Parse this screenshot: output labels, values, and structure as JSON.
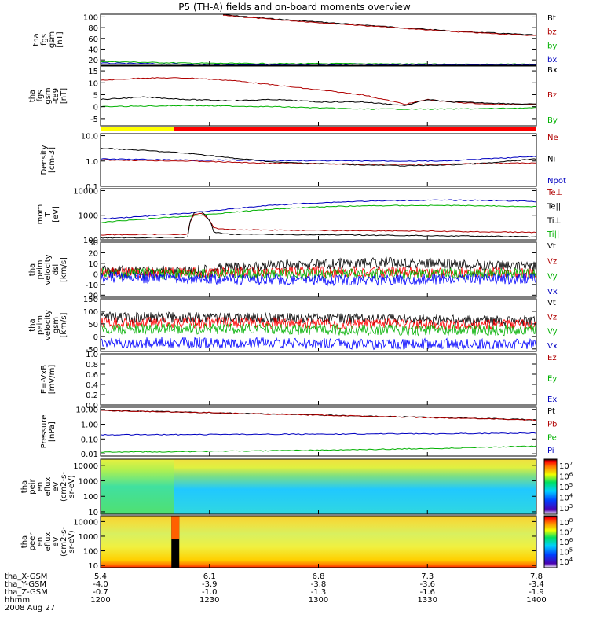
{
  "title": "P5 (TH-A) fields and on-board moments overview",
  "chart_data": [
    {
      "type": "line",
      "ylabel": [
        "tha",
        "fgs",
        "gsm",
        "[nT]"
      ],
      "ylim": [
        10,
        105
      ],
      "yticks": [
        20,
        40,
        60,
        80,
        100
      ],
      "ytick_labels": [
        "20",
        "40",
        "60",
        "80",
        "100"
      ],
      "legend": [
        {
          "label": "Bt",
          "color": "#000000"
        },
        {
          "label": "bz",
          "color": "#b00000"
        },
        {
          "label": "by",
          "color": "#00b000"
        },
        {
          "label": "bx",
          "color": "#0000c0"
        }
      ],
      "series": [
        {
          "name": "Bt",
          "color": "#000000",
          "x": [
            0.28,
            0.4,
            0.6,
            0.8,
            1.0
          ],
          "y": [
            104,
            96,
            85,
            74,
            66
          ]
        },
        {
          "name": "bz",
          "color": "#b00000",
          "x": [
            0.28,
            0.4,
            0.6,
            0.8,
            1.0
          ],
          "y": [
            103,
            95,
            84,
            73,
            65
          ]
        },
        {
          "name": "by",
          "color": "#00b000",
          "x": [
            0,
            0.2,
            0.4,
            0.6,
            0.8,
            1.0
          ],
          "y": [
            17,
            14,
            13,
            13,
            12,
            12
          ]
        },
        {
          "name": "bx",
          "color": "#0000c0",
          "x": [
            0,
            0.2,
            0.4,
            0.6,
            0.8,
            1.0
          ],
          "y": [
            14,
            12,
            11,
            12,
            11,
            11
          ]
        }
      ]
    },
    {
      "type": "line",
      "ylabel": [
        "tha",
        "fgs",
        "gsm",
        "-t89",
        "[nT]"
      ],
      "ylim": [
        -8,
        17
      ],
      "yticks": [
        -5,
        0,
        5,
        10,
        15
      ],
      "ytick_labels": [
        "-5",
        "0",
        "5",
        "10",
        "15"
      ],
      "legend": [
        {
          "label": "Bx",
          "color": "#000000"
        },
        {
          "label": "Bz",
          "color": "#b00000"
        },
        {
          "label": "By",
          "color": "#00b000"
        }
      ],
      "series": [
        {
          "name": "Bz",
          "color": "#b00000",
          "x": [
            0,
            0.1,
            0.2,
            0.3,
            0.4,
            0.5,
            0.55,
            0.6,
            0.65,
            0.7,
            0.75,
            0.8,
            0.9,
            1.0
          ],
          "y": [
            11,
            12,
            12,
            11,
            9,
            7,
            6,
            5,
            3,
            1,
            3,
            2,
            1,
            1
          ]
        },
        {
          "name": "Bx",
          "color": "#000000",
          "x": [
            0,
            0.1,
            0.2,
            0.3,
            0.4,
            0.5,
            0.6,
            0.7,
            0.75,
            0.8,
            0.9,
            1.0
          ],
          "y": [
            3,
            4,
            3,
            2.5,
            3,
            2,
            2,
            0.5,
            3,
            2,
            1.5,
            1
          ]
        },
        {
          "name": "By",
          "color": "#00b000",
          "x": [
            0,
            0.2,
            0.4,
            0.6,
            0.8,
            1.0
          ],
          "y": [
            0,
            0.5,
            0,
            -1,
            -1,
            -0.5
          ]
        }
      ]
    },
    {
      "type": "line",
      "ylabel": [
        "Density",
        "[cm-3]"
      ],
      "yscale": "log",
      "ylim": [
        0.1,
        12
      ],
      "yticks": [
        0.1,
        1.0,
        10.0
      ],
      "ytick_labels": [
        "0.1",
        "1.0",
        "10.0"
      ],
      "legend": [
        {
          "label": "Ne",
          "color": "#b00000"
        },
        {
          "label": "Ni",
          "color": "#000000"
        },
        {
          "label": "Npot",
          "color": "#0000c0"
        }
      ],
      "series": [
        {
          "name": "Ni",
          "color": "#000000",
          "x": [
            0,
            0.1,
            0.2,
            0.3,
            0.4,
            0.5,
            0.6,
            0.7,
            0.8,
            0.9,
            1.0
          ],
          "y": [
            3.2,
            2.6,
            2.0,
            1.3,
            0.9,
            0.8,
            0.7,
            0.65,
            0.7,
            0.85,
            1.2
          ]
        },
        {
          "name": "Ne",
          "color": "#b00000",
          "x": [
            0,
            0.2,
            0.3,
            0.4,
            0.6,
            0.8,
            1.0
          ],
          "y": [
            1.1,
            1.0,
            0.9,
            0.8,
            0.75,
            0.75,
            0.85
          ]
        },
        {
          "name": "Npot",
          "color": "#0000c0",
          "x": [
            0,
            0.2,
            0.4,
            0.6,
            0.8,
            1.0
          ],
          "y": [
            1.2,
            1.1,
            1.05,
            1.0,
            1.0,
            1.5
          ]
        }
      ]
    },
    {
      "type": "line",
      "ylabel": [
        "mom",
        "T",
        "[eV]"
      ],
      "yscale": "log",
      "ylim": [
        100,
        12000
      ],
      "yticks": [
        100,
        1000,
        10000
      ],
      "ytick_labels": [
        "100",
        "1000",
        "10000"
      ],
      "legend": [
        {
          "label": "Te⊥",
          "color": "#b00000"
        },
        {
          "label": "Te||",
          "color": "#000000"
        },
        {
          "label": "Ti⊥",
          "color": "#000000"
        },
        {
          "label": "Ti||",
          "color": "#00b000"
        }
      ],
      "series": [
        {
          "name": "Ti⊥",
          "color": "#0000c0",
          "x": [
            0,
            0.1,
            0.2,
            0.3,
            0.4,
            0.5,
            0.6,
            0.7,
            0.8,
            0.9,
            1.0
          ],
          "y": [
            700,
            900,
            1200,
            1800,
            2600,
            3200,
            3700,
            4000,
            4100,
            4000,
            3600
          ]
        },
        {
          "name": "Ti||",
          "color": "#00b000",
          "x": [
            0,
            0.1,
            0.2,
            0.3,
            0.4,
            0.5,
            0.6,
            0.7,
            0.8,
            0.9,
            1.0
          ],
          "y": [
            500,
            700,
            900,
            1300,
            1800,
            2200,
            2400,
            2500,
            2500,
            2400,
            2200
          ]
        },
        {
          "name": "Te⊥",
          "color": "#b00000",
          "x": [
            0,
            0.2,
            0.215,
            0.23,
            0.26,
            0.3,
            0.5,
            0.7,
            0.9,
            1.0
          ],
          "y": [
            160,
            170,
            1100,
            1200,
            300,
            260,
            240,
            230,
            210,
            200
          ]
        },
        {
          "name": "Te||",
          "color": "#000000",
          "x": [
            0,
            0.2,
            0.215,
            0.23,
            0.26,
            0.3,
            0.5,
            0.7,
            0.9,
            1.0
          ],
          "y": [
            120,
            125,
            1300,
            1400,
            200,
            170,
            160,
            150,
            140,
            130
          ]
        }
      ]
    },
    {
      "type": "line",
      "ylabel": [
        "tha",
        "peim",
        "velocity",
        "dsl",
        "[km/s]"
      ],
      "ylim": [
        -22,
        30
      ],
      "yticks": [
        -20,
        -10,
        0,
        10,
        20,
        30
      ],
      "ytick_labels": [
        "-20",
        "-10",
        "0",
        "10",
        "20",
        "30"
      ],
      "legend": [
        {
          "label": "Vt",
          "color": "#000000"
        },
        {
          "label": "Vz",
          "color": "#b00000"
        },
        {
          "label": "Vy",
          "color": "#00b000"
        },
        {
          "label": "Vx",
          "color": "#0000c0"
        }
      ],
      "series": [
        {
          "name": "Vt",
          "color": "#000000",
          "x": [
            0,
            0.2,
            0.3,
            0.4,
            0.5,
            0.6,
            0.7,
            0.8,
            0.9,
            1.0
          ],
          "y": [
            3,
            3,
            6,
            8,
            9,
            10,
            11,
            9,
            8,
            7
          ]
        },
        {
          "name": "Vz",
          "color": "#ff0000",
          "x": [
            0,
            0.5,
            1.0
          ],
          "y": [
            1,
            2,
            1
          ]
        },
        {
          "name": "Vy",
          "color": "#00b000",
          "x": [
            0,
            0.5,
            1.0
          ],
          "y": [
            0,
            0,
            0
          ]
        },
        {
          "name": "Vx",
          "color": "#0000ff",
          "x": [
            0,
            0.3,
            0.6,
            1.0
          ],
          "y": [
            -3,
            -5,
            -6,
            -4
          ]
        }
      ]
    },
    {
      "type": "line",
      "ylabel": [
        "tha",
        "peim",
        "velocity",
        "gsm",
        "[km/s]"
      ],
      "ylim": [
        -60,
        150
      ],
      "yticks": [
        -50,
        0,
        50,
        100,
        150
      ],
      "ytick_labels": [
        "-50",
        "0",
        "50",
        "100",
        "150"
      ],
      "legend": [
        {
          "label": "Vt",
          "color": "#000000"
        },
        {
          "label": "Vz",
          "color": "#b00000"
        },
        {
          "label": "Vy",
          "color": "#00b000"
        },
        {
          "label": "Vx",
          "color": "#0000c0"
        }
      ],
      "series": [
        {
          "name": "Vt",
          "color": "#000000",
          "x": [
            0,
            0.3,
            0.6,
            1.0
          ],
          "y": [
            75,
            75,
            70,
            60
          ]
        },
        {
          "name": "Vz",
          "color": "#ff0000",
          "x": [
            0,
            0.3,
            0.6,
            1.0
          ],
          "y": [
            55,
            55,
            50,
            45
          ]
        },
        {
          "name": "Vy",
          "color": "#00b000",
          "x": [
            0,
            0.3,
            0.6,
            1.0
          ],
          "y": [
            30,
            30,
            25,
            25
          ]
        },
        {
          "name": "Vx",
          "color": "#0000ff",
          "x": [
            0,
            0.3,
            0.6,
            1.0
          ],
          "y": [
            -25,
            -25,
            -30,
            -30
          ]
        }
      ]
    },
    {
      "type": "line",
      "ylabel": [
        "E=-VxB",
        "[mV/m]"
      ],
      "ylim": [
        0,
        1
      ],
      "yticks": [
        0,
        0.2,
        0.4,
        0.6,
        0.8,
        1.0
      ],
      "ytick_labels": [
        "0.0",
        "0.2",
        "0.4",
        "0.6",
        "0.8",
        "1.0"
      ],
      "legend": [
        {
          "label": "Ez",
          "color": "#b00000"
        },
        {
          "label": "Ey",
          "color": "#00b000"
        },
        {
          "label": "Ex",
          "color": "#0000c0"
        }
      ],
      "series": []
    },
    {
      "type": "line",
      "ylabel": [
        "Pressure",
        "[nPa]"
      ],
      "yscale": "log",
      "ylim": [
        0.007,
        14
      ],
      "yticks": [
        0.01,
        0.1,
        1.0,
        10.0
      ],
      "ytick_labels": [
        "0.01",
        "0.10",
        "1.00",
        "10.00"
      ],
      "legend": [
        {
          "label": "Pt",
          "color": "#000000"
        },
        {
          "label": "Pb",
          "color": "#b00000"
        },
        {
          "label": "Pe",
          "color": "#00b000"
        },
        {
          "label": "Pi",
          "color": "#0000c0"
        }
      ],
      "series": [
        {
          "name": "Pt",
          "color": "#000000",
          "x": [
            0,
            0.2,
            0.4,
            0.6,
            0.8,
            1.0
          ],
          "y": [
            8.5,
            6.5,
            4.8,
            3.6,
            2.7,
            2.0
          ]
        },
        {
          "name": "Pb",
          "color": "#b00000",
          "x": [
            0,
            0.2,
            0.4,
            0.6,
            0.8,
            1.0
          ],
          "y": [
            8.3,
            6.4,
            4.7,
            3.5,
            2.6,
            1.9
          ]
        },
        {
          "name": "Pi",
          "color": "#0000c0",
          "x": [
            0,
            0.2,
            0.4,
            0.6,
            0.8,
            1.0
          ],
          "y": [
            0.19,
            0.2,
            0.21,
            0.22,
            0.23,
            0.25
          ]
        },
        {
          "name": "Pe",
          "color": "#00b000",
          "x": [
            0,
            0.2,
            0.4,
            0.6,
            0.8,
            1.0
          ],
          "y": [
            0.013,
            0.014,
            0.016,
            0.019,
            0.024,
            0.033
          ]
        }
      ]
    },
    {
      "type": "heatmap",
      "ylabel": [
        "tha",
        "peir",
        "en",
        "eflux",
        "eV",
        "(cm2-s-",
        "sr-eV)"
      ],
      "yscale": "log",
      "ylim": [
        7,
        25000
      ],
      "yticks": [
        10,
        100,
        1000,
        10000
      ],
      "ytick_labels": [
        "10",
        "100",
        "1000",
        "10000"
      ],
      "colorbar_ticks": [
        "10^3",
        "10^4",
        "10^5",
        "10^6",
        "10^7"
      ]
    },
    {
      "type": "heatmap",
      "ylabel": [
        "tha",
        "peer",
        "en",
        "eflux",
        "eV",
        "(cm2-s-",
        "sr-eV)"
      ],
      "yscale": "log",
      "ylim": [
        7,
        25000
      ],
      "yticks": [
        10,
        100,
        1000,
        10000
      ],
      "ytick_labels": [
        "10",
        "100",
        "1000",
        "10000"
      ],
      "colorbar_ticks": [
        "10^4",
        "10^5",
        "10^6",
        "10^7",
        "10^8"
      ]
    }
  ],
  "ephemeris": {
    "rows": [
      {
        "label": "tha_X-GSM",
        "values": [
          "5.4",
          "6.1",
          "6.8",
          "7.3",
          "7.8"
        ]
      },
      {
        "label": "tha_Y-GSM",
        "values": [
          "-4.0",
          "-3.9",
          "-3.8",
          "-3.6",
          "-3.4"
        ]
      },
      {
        "label": "tha_Z-GSM",
        "values": [
          "-0.7",
          "-1.0",
          "-1.3",
          "-1.6",
          "-1.9"
        ]
      },
      {
        "label": "hhmm",
        "values": [
          "1200",
          "1230",
          "1300",
          "1330",
          "1400"
        ]
      }
    ],
    "date": "2008 Aug 27"
  }
}
